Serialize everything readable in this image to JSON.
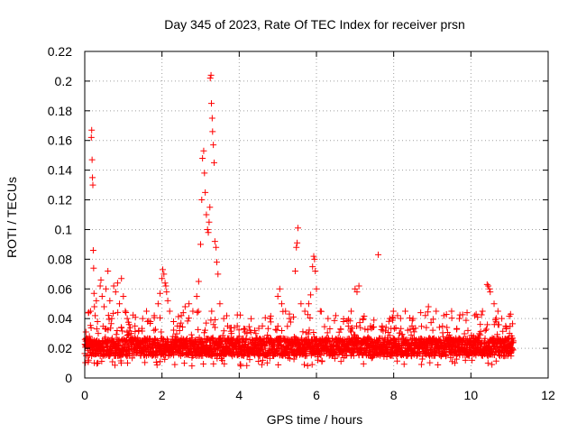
{
  "chart_data": {
    "type": "scatter",
    "title": "Day 345 of 2023, Rate Of TEC Index for receiver prsn",
    "xlabel": "GPS time / hours",
    "ylabel": "ROTI / TECUs",
    "xlim": [
      0,
      12
    ],
    "ylim": [
      0,
      0.22
    ],
    "xticks": [
      "0",
      "2",
      "4",
      "6",
      "8",
      "10",
      "12"
    ],
    "xtick_values": [
      0,
      2,
      4,
      6,
      8,
      10,
      12
    ],
    "yticks": [
      "0",
      "0.02",
      "0.04",
      "0.06",
      "0.08",
      "0.1",
      "0.12",
      "0.14",
      "0.16",
      "0.18",
      "0.2",
      "0.22"
    ],
    "ytick_values": [
      0,
      0.02,
      0.04,
      0.06,
      0.08,
      0.1,
      0.12,
      0.14,
      0.16,
      0.18,
      0.2,
      0.22
    ],
    "grid": true,
    "marker": "+",
    "color": "#ff0000",
    "series": [
      {
        "name": "ROTI",
        "baseline_band": {
          "x_range": [
            0,
            11.1
          ],
          "y_typical": [
            0.008,
            0.035
          ],
          "description_values": "dense cloud of points between about 0.01 and 0.03 TECU/s across 0 to 11.1 h"
        },
        "points": [
          [
            0.03,
            0.031
          ],
          [
            0.05,
            0.022
          ],
          [
            0.08,
            0.015
          ],
          [
            0.1,
            0.012
          ],
          [
            0.12,
            0.028
          ],
          [
            0.15,
            0.045
          ],
          [
            0.17,
            0.162
          ],
          [
            0.18,
            0.167
          ],
          [
            0.19,
            0.147
          ],
          [
            0.2,
            0.135
          ],
          [
            0.21,
            0.13
          ],
          [
            0.22,
            0.086
          ],
          [
            0.23,
            0.074
          ],
          [
            0.24,
            0.057
          ],
          [
            0.25,
            0.048
          ],
          [
            0.27,
            0.042
          ],
          [
            0.3,
            0.052
          ],
          [
            0.33,
            0.038
          ],
          [
            0.35,
            0.03
          ],
          [
            0.4,
            0.062
          ],
          [
            0.42,
            0.066
          ],
          [
            0.45,
            0.055
          ],
          [
            0.5,
            0.048
          ],
          [
            0.55,
            0.06
          ],
          [
            0.6,
            0.072
          ],
          [
            0.65,
            0.052
          ],
          [
            0.7,
            0.04
          ],
          [
            0.75,
            0.062
          ],
          [
            0.8,
            0.058
          ],
          [
            0.85,
            0.064
          ],
          [
            0.9,
            0.05
          ],
          [
            0.95,
            0.067
          ],
          [
            1.0,
            0.055
          ],
          [
            1.05,
            0.045
          ],
          [
            1.1,
            0.04
          ],
          [
            1.15,
            0.036
          ],
          [
            1.2,
            0.03
          ],
          [
            1.3,
            0.035
          ],
          [
            1.4,
            0.032
          ],
          [
            1.5,
            0.04
          ],
          [
            1.6,
            0.045
          ],
          [
            1.7,
            0.038
          ],
          [
            1.8,
            0.042
          ],
          [
            1.9,
            0.05
          ],
          [
            1.95,
            0.057
          ],
          [
            2.0,
            0.067
          ],
          [
            2.02,
            0.073
          ],
          [
            2.05,
            0.07
          ],
          [
            2.08,
            0.064
          ],
          [
            2.1,
            0.062
          ],
          [
            2.12,
            0.058
          ],
          [
            2.15,
            0.052
          ],
          [
            2.2,
            0.045
          ],
          [
            2.3,
            0.038
          ],
          [
            2.4,
            0.035
          ],
          [
            2.5,
            0.042
          ],
          [
            2.6,
            0.048
          ],
          [
            2.7,
            0.05
          ],
          [
            2.8,
            0.045
          ],
          [
            2.9,
            0.055
          ],
          [
            2.95,
            0.065
          ],
          [
            3.0,
            0.09
          ],
          [
            3.03,
            0.12
          ],
          [
            3.05,
            0.148
          ],
          [
            3.08,
            0.153
          ],
          [
            3.1,
            0.138
          ],
          [
            3.12,
            0.125
          ],
          [
            3.15,
            0.11
          ],
          [
            3.18,
            0.1
          ],
          [
            3.2,
            0.098
          ],
          [
            3.22,
            0.105
          ],
          [
            3.24,
            0.115
          ],
          [
            3.25,
            0.202
          ],
          [
            3.27,
            0.204
          ],
          [
            3.28,
            0.185
          ],
          [
            3.3,
            0.175
          ],
          [
            3.31,
            0.166
          ],
          [
            3.33,
            0.157
          ],
          [
            3.35,
            0.145
          ],
          [
            3.37,
            0.092
          ],
          [
            3.4,
            0.088
          ],
          [
            3.42,
            0.078
          ],
          [
            3.45,
            0.07
          ],
          [
            3.5,
            0.05
          ],
          [
            3.6,
            0.04
          ],
          [
            3.7,
            0.035
          ],
          [
            3.8,
            0.03
          ],
          [
            4.0,
            0.028
          ],
          [
            4.2,
            0.03
          ],
          [
            4.4,
            0.032
          ],
          [
            4.6,
            0.035
          ],
          [
            4.8,
            0.04
          ],
          [
            5.0,
            0.055
          ],
          [
            5.05,
            0.06
          ],
          [
            5.1,
            0.05
          ],
          [
            5.2,
            0.045
          ],
          [
            5.3,
            0.04
          ],
          [
            5.45,
            0.072
          ],
          [
            5.48,
            0.088
          ],
          [
            5.5,
            0.091
          ],
          [
            5.52,
            0.101
          ],
          [
            5.6,
            0.05
          ],
          [
            5.7,
            0.045
          ],
          [
            5.8,
            0.05
          ],
          [
            5.85,
            0.056
          ],
          [
            5.9,
            0.075
          ],
          [
            5.93,
            0.082
          ],
          [
            5.95,
            0.08
          ],
          [
            5.97,
            0.072
          ],
          [
            6.0,
            0.06
          ],
          [
            6.1,
            0.045
          ],
          [
            6.3,
            0.04
          ],
          [
            6.5,
            0.042
          ],
          [
            6.7,
            0.038
          ],
          [
            6.9,
            0.045
          ],
          [
            7.0,
            0.06
          ],
          [
            7.05,
            0.058
          ],
          [
            7.1,
            0.062
          ],
          [
            7.2,
            0.04
          ],
          [
            7.4,
            0.035
          ],
          [
            7.6,
            0.083
          ],
          [
            7.7,
            0.035
          ],
          [
            7.9,
            0.04
          ],
          [
            8.1,
            0.042
          ],
          [
            8.3,
            0.045
          ],
          [
            8.5,
            0.04
          ],
          [
            8.7,
            0.044
          ],
          [
            8.9,
            0.048
          ],
          [
            9.1,
            0.045
          ],
          [
            9.3,
            0.042
          ],
          [
            9.5,
            0.045
          ],
          [
            9.7,
            0.04
          ],
          [
            9.9,
            0.044
          ],
          [
            10.1,
            0.042
          ],
          [
            10.3,
            0.045
          ],
          [
            10.42,
            0.063
          ],
          [
            10.45,
            0.062
          ],
          [
            10.48,
            0.06
          ],
          [
            10.5,
            0.058
          ],
          [
            10.6,
            0.05
          ],
          [
            10.7,
            0.045
          ],
          [
            10.8,
            0.04
          ],
          [
            10.9,
            0.035
          ],
          [
            11.0,
            0.03
          ],
          [
            11.1,
            0.025
          ]
        ]
      }
    ]
  }
}
